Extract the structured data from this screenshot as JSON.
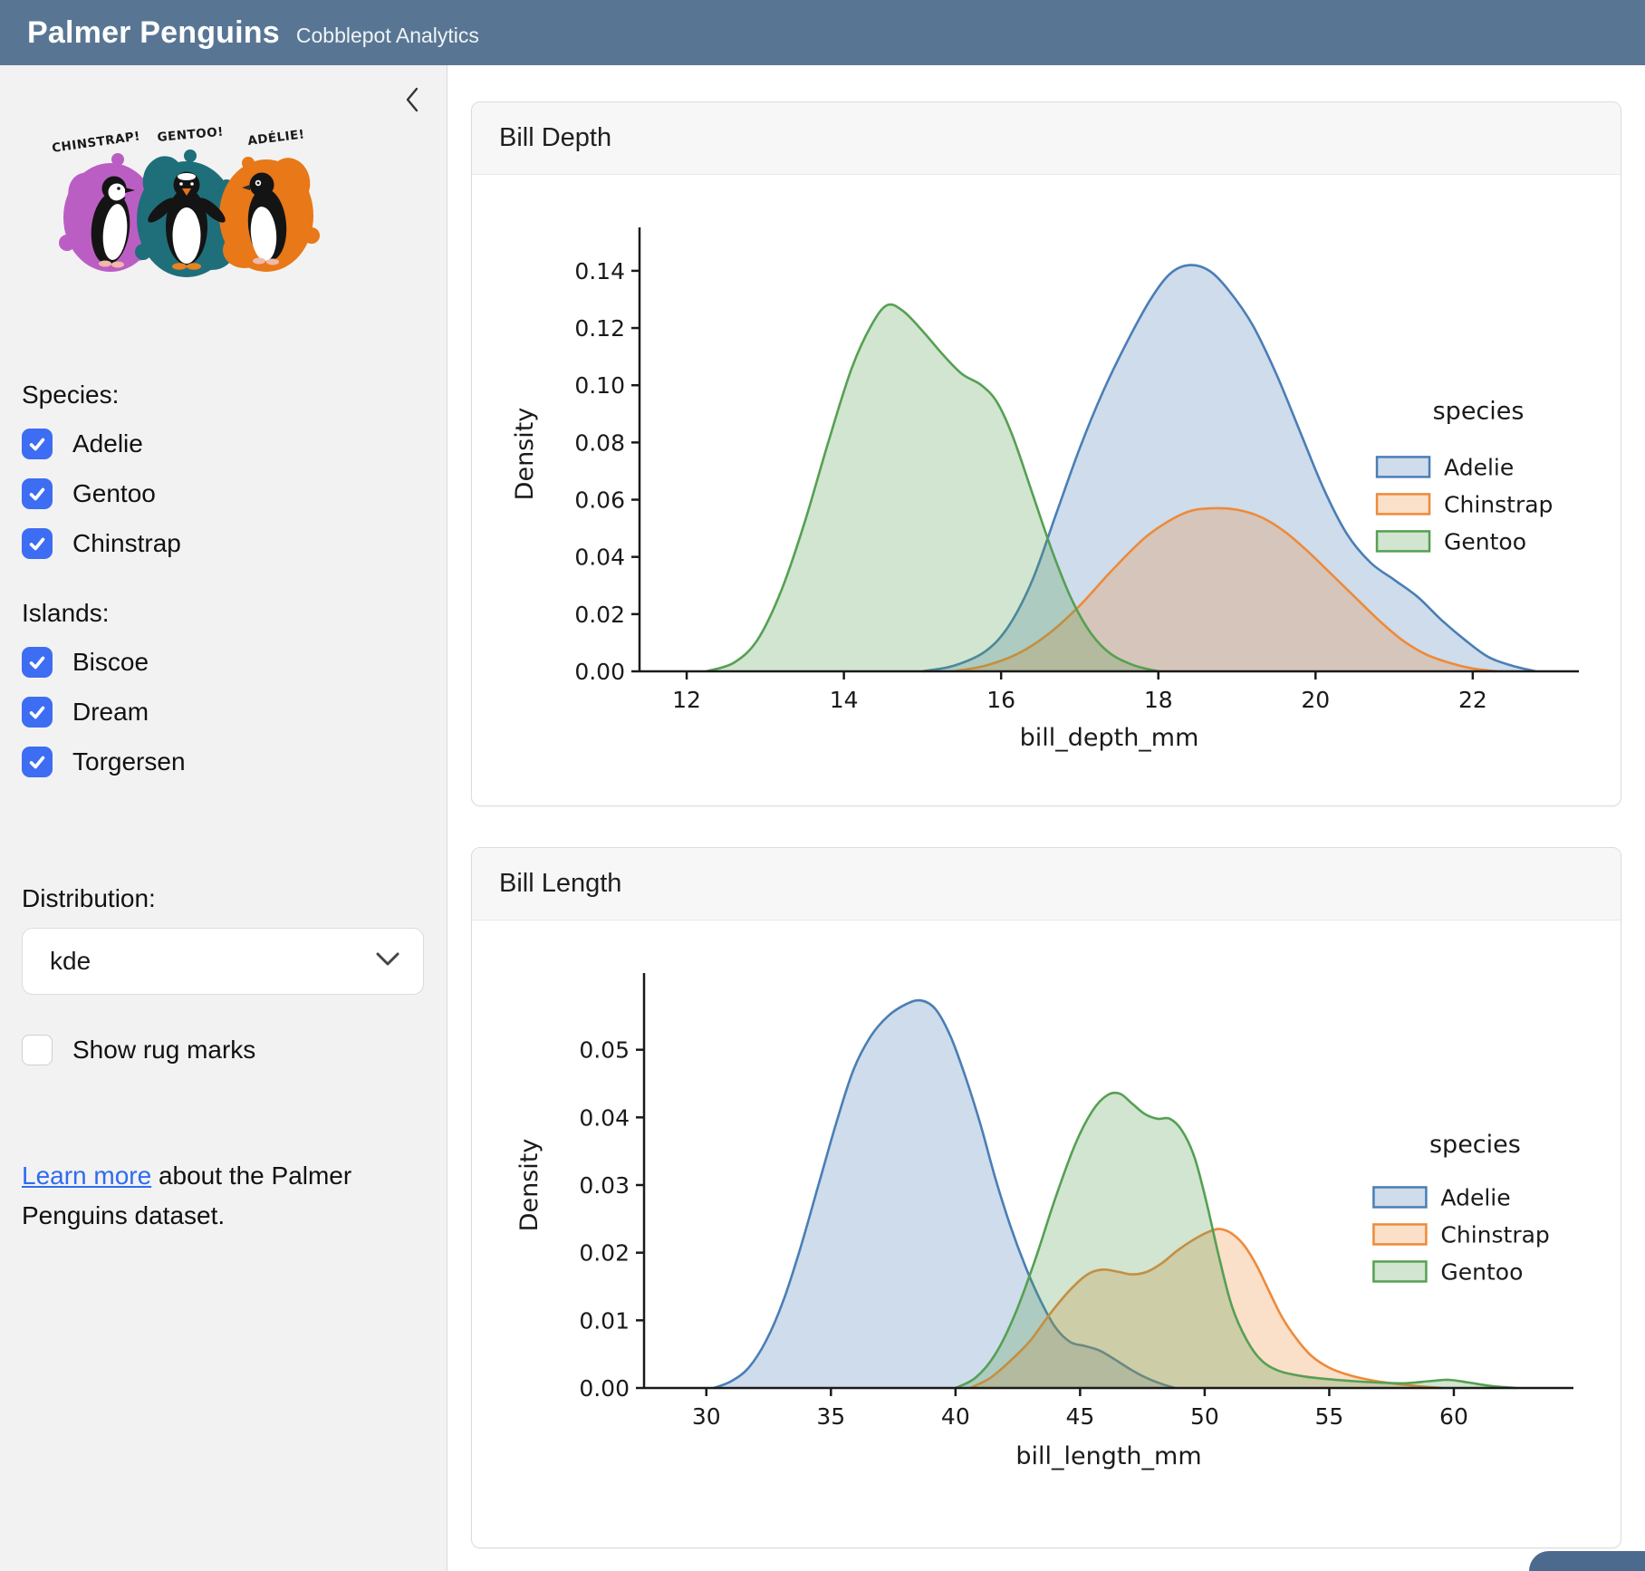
{
  "header": {
    "title": "Palmer Penguins",
    "subtitle": "Cobblepot Analytics"
  },
  "sidebar": {
    "artwork_labels": {
      "chinstrap": "CHINSTRAP!",
      "gentoo": "GENTOO!",
      "adelie": "ADÉLIE!"
    },
    "species_label": "Species:",
    "species": [
      {
        "label": "Adelie",
        "checked": true
      },
      {
        "label": "Gentoo",
        "checked": true
      },
      {
        "label": "Chinstrap",
        "checked": true
      }
    ],
    "islands_label": "Islands:",
    "islands": [
      {
        "label": "Biscoe",
        "checked": true
      },
      {
        "label": "Dream",
        "checked": true
      },
      {
        "label": "Torgersen",
        "checked": true
      }
    ],
    "distribution_label": "Distribution:",
    "distribution_value": "kde",
    "rug_label": "Show rug marks",
    "rug_checked": false,
    "learn_more_link": "Learn more",
    "learn_more_rest": " about the Palmer Penguins dataset."
  },
  "cards": [
    {
      "title": "Bill Depth"
    },
    {
      "title": "Bill Length"
    }
  ],
  "colors": {
    "header_bg": "#587694",
    "sidebar_bg": "#f2f2f2",
    "checkbox_blue": "#3c6df2",
    "link_blue": "#2e6bf0",
    "adelie": "#4a7eb5",
    "chinstrap": "#ee8a39",
    "gentoo": "#55a053",
    "splash_purple": "#bb5ec4",
    "splash_teal": "#1f6f7b",
    "splash_orange": "#e87818"
  },
  "chart_data": [
    {
      "type": "area",
      "title": "Bill Depth",
      "xlabel": "bill_depth_mm",
      "ylabel": "Density",
      "xlim": [
        11.4,
        23.35
      ],
      "ylim": [
        0,
        0.152
      ],
      "xticks": [
        12,
        14,
        16,
        18,
        20,
        22
      ],
      "ytick_values": [
        0,
        0.02,
        0.04,
        0.06,
        0.08,
        0.1,
        0.12,
        0.14
      ],
      "ytick_labels": [
        "0.00",
        "0.02",
        "0.04",
        "0.06",
        "0.08",
        "0.10",
        "0.12",
        "0.14"
      ],
      "grid": false,
      "legend_title": "species",
      "legend_position": "center right",
      "series": [
        {
          "name": "Adelie",
          "color": "#4a7eb5",
          "points": [
            [
              15.0,
              0
            ],
            [
              15.4,
              0.002
            ],
            [
              15.8,
              0.007
            ],
            [
              16.1,
              0.016
            ],
            [
              16.4,
              0.032
            ],
            [
              16.7,
              0.055
            ],
            [
              17.0,
              0.078
            ],
            [
              17.3,
              0.098
            ],
            [
              17.6,
              0.115
            ],
            [
              17.9,
              0.13
            ],
            [
              18.15,
              0.139
            ],
            [
              18.4,
              0.142
            ],
            [
              18.65,
              0.14
            ],
            [
              18.9,
              0.133
            ],
            [
              19.2,
              0.121
            ],
            [
              19.5,
              0.104
            ],
            [
              19.8,
              0.084
            ],
            [
              20.1,
              0.064
            ],
            [
              20.4,
              0.048
            ],
            [
              20.7,
              0.038
            ],
            [
              21.0,
              0.032
            ],
            [
              21.3,
              0.026
            ],
            [
              21.6,
              0.018
            ],
            [
              21.9,
              0.011
            ],
            [
              22.2,
              0.005
            ],
            [
              22.5,
              0.002
            ],
            [
              22.8,
              0
            ]
          ]
        },
        {
          "name": "Chinstrap",
          "color": "#ee8a39",
          "points": [
            [
              15.4,
              0
            ],
            [
              15.8,
              0.002
            ],
            [
              16.2,
              0.006
            ],
            [
              16.6,
              0.013
            ],
            [
              17.0,
              0.023
            ],
            [
              17.4,
              0.035
            ],
            [
              17.8,
              0.046
            ],
            [
              18.1,
              0.052
            ],
            [
              18.4,
              0.056
            ],
            [
              18.7,
              0.057
            ],
            [
              19.0,
              0.0565
            ],
            [
              19.3,
              0.054
            ],
            [
              19.6,
              0.049
            ],
            [
              19.9,
              0.042
            ],
            [
              20.2,
              0.034
            ],
            [
              20.5,
              0.026
            ],
            [
              20.8,
              0.018
            ],
            [
              21.1,
              0.011
            ],
            [
              21.4,
              0.006
            ],
            [
              21.7,
              0.003
            ],
            [
              22.0,
              0.001
            ],
            [
              22.3,
              0
            ]
          ]
        },
        {
          "name": "Gentoo",
          "color": "#55a053",
          "points": [
            [
              12.25,
              0
            ],
            [
              12.6,
              0.003
            ],
            [
              12.9,
              0.011
            ],
            [
              13.2,
              0.028
            ],
            [
              13.5,
              0.052
            ],
            [
              13.8,
              0.08
            ],
            [
              14.1,
              0.106
            ],
            [
              14.35,
              0.121
            ],
            [
              14.55,
              0.128
            ],
            [
              14.75,
              0.126
            ],
            [
              15.0,
              0.119
            ],
            [
              15.25,
              0.111
            ],
            [
              15.5,
              0.104
            ],
            [
              15.75,
              0.1
            ],
            [
              15.95,
              0.094
            ],
            [
              16.15,
              0.082
            ],
            [
              16.4,
              0.062
            ],
            [
              16.65,
              0.042
            ],
            [
              16.9,
              0.025
            ],
            [
              17.15,
              0.013
            ],
            [
              17.4,
              0.006
            ],
            [
              17.7,
              0.002
            ],
            [
              18.0,
              0
            ]
          ]
        }
      ]
    },
    {
      "type": "area",
      "title": "Bill Length",
      "xlabel": "bill_length_mm",
      "ylabel": "Density",
      "xlim": [
        27.5,
        64.8
      ],
      "ylim": [
        0,
        0.06
      ],
      "xticks": [
        30,
        35,
        40,
        45,
        50,
        55,
        60
      ],
      "ytick_values": [
        0,
        0.01,
        0.02,
        0.03,
        0.04,
        0.05
      ],
      "ytick_labels": [
        "0.00",
        "0.01",
        "0.02",
        "0.03",
        "0.04",
        "0.05"
      ],
      "grid": false,
      "legend_title": "species",
      "legend_position": "center right",
      "series": [
        {
          "name": "Adelie",
          "color": "#4a7eb5",
          "points": [
            [
              30.3,
              0
            ],
            [
              31.0,
              0.001
            ],
            [
              31.7,
              0.003
            ],
            [
              32.4,
              0.007
            ],
            [
              33.1,
              0.013
            ],
            [
              33.8,
              0.021
            ],
            [
              34.5,
              0.03
            ],
            [
              35.2,
              0.039
            ],
            [
              35.9,
              0.047
            ],
            [
              36.6,
              0.052
            ],
            [
              37.3,
              0.055
            ],
            [
              38.0,
              0.0567
            ],
            [
              38.6,
              0.0573
            ],
            [
              39.2,
              0.056
            ],
            [
              39.8,
              0.052
            ],
            [
              40.4,
              0.046
            ],
            [
              41.0,
              0.039
            ],
            [
              41.6,
              0.031
            ],
            [
              42.2,
              0.024
            ],
            [
              42.8,
              0.018
            ],
            [
              43.4,
              0.013
            ],
            [
              44.0,
              0.009
            ],
            [
              44.6,
              0.0068
            ],
            [
              45.2,
              0.0062
            ],
            [
              45.8,
              0.0055
            ],
            [
              46.4,
              0.0042
            ],
            [
              47.0,
              0.0028
            ],
            [
              47.6,
              0.0016
            ],
            [
              48.2,
              0.0007
            ],
            [
              48.8,
              0
            ]
          ]
        },
        {
          "name": "Chinstrap",
          "color": "#ee8a39",
          "points": [
            [
              40.6,
              0
            ],
            [
              41.4,
              0.0015
            ],
            [
              42.2,
              0.004
            ],
            [
              43.0,
              0.007
            ],
            [
              43.8,
              0.011
            ],
            [
              44.6,
              0.0145
            ],
            [
              45.3,
              0.0168
            ],
            [
              45.9,
              0.0175
            ],
            [
              46.5,
              0.0172
            ],
            [
              47.1,
              0.0168
            ],
            [
              47.7,
              0.0172
            ],
            [
              48.3,
              0.0185
            ],
            [
              48.9,
              0.0203
            ],
            [
              49.5,
              0.0218
            ],
            [
              50.1,
              0.023
            ],
            [
              50.6,
              0.0235
            ],
            [
              51.1,
              0.0228
            ],
            [
              51.6,
              0.021
            ],
            [
              52.1,
              0.018
            ],
            [
              52.6,
              0.0142
            ],
            [
              53.1,
              0.0105
            ],
            [
              53.7,
              0.0072
            ],
            [
              54.3,
              0.0047
            ],
            [
              55.0,
              0.003
            ],
            [
              55.8,
              0.0019
            ],
            [
              56.6,
              0.0012
            ],
            [
              57.5,
              0.0007
            ],
            [
              58.5,
              0.0003
            ],
            [
              59.5,
              0
            ]
          ]
        },
        {
          "name": "Gentoo",
          "color": "#55a053",
          "points": [
            [
              40.0,
              0
            ],
            [
              40.8,
              0.0015
            ],
            [
              41.6,
              0.005
            ],
            [
              42.4,
              0.011
            ],
            [
              43.2,
              0.019
            ],
            [
              44.0,
              0.028
            ],
            [
              44.8,
              0.036
            ],
            [
              45.5,
              0.041
            ],
            [
              46.1,
              0.0433
            ],
            [
              46.6,
              0.0435
            ],
            [
              47.1,
              0.042
            ],
            [
              47.6,
              0.0405
            ],
            [
              48.1,
              0.0398
            ],
            [
              48.6,
              0.0398
            ],
            [
              49.1,
              0.038
            ],
            [
              49.6,
              0.034
            ],
            [
              50.1,
              0.027
            ],
            [
              50.6,
              0.019
            ],
            [
              51.1,
              0.012
            ],
            [
              51.7,
              0.007
            ],
            [
              52.3,
              0.004
            ],
            [
              53.0,
              0.0025
            ],
            [
              54.0,
              0.0017
            ],
            [
              55.0,
              0.0013
            ],
            [
              56.0,
              0.001
            ],
            [
              57.0,
              0.0008
            ],
            [
              58.0,
              0.0007
            ],
            [
              59.0,
              0.001
            ],
            [
              59.8,
              0.0012
            ],
            [
              60.6,
              0.0008
            ],
            [
              61.5,
              0.0003
            ],
            [
              62.5,
              0
            ]
          ]
        }
      ]
    }
  ]
}
